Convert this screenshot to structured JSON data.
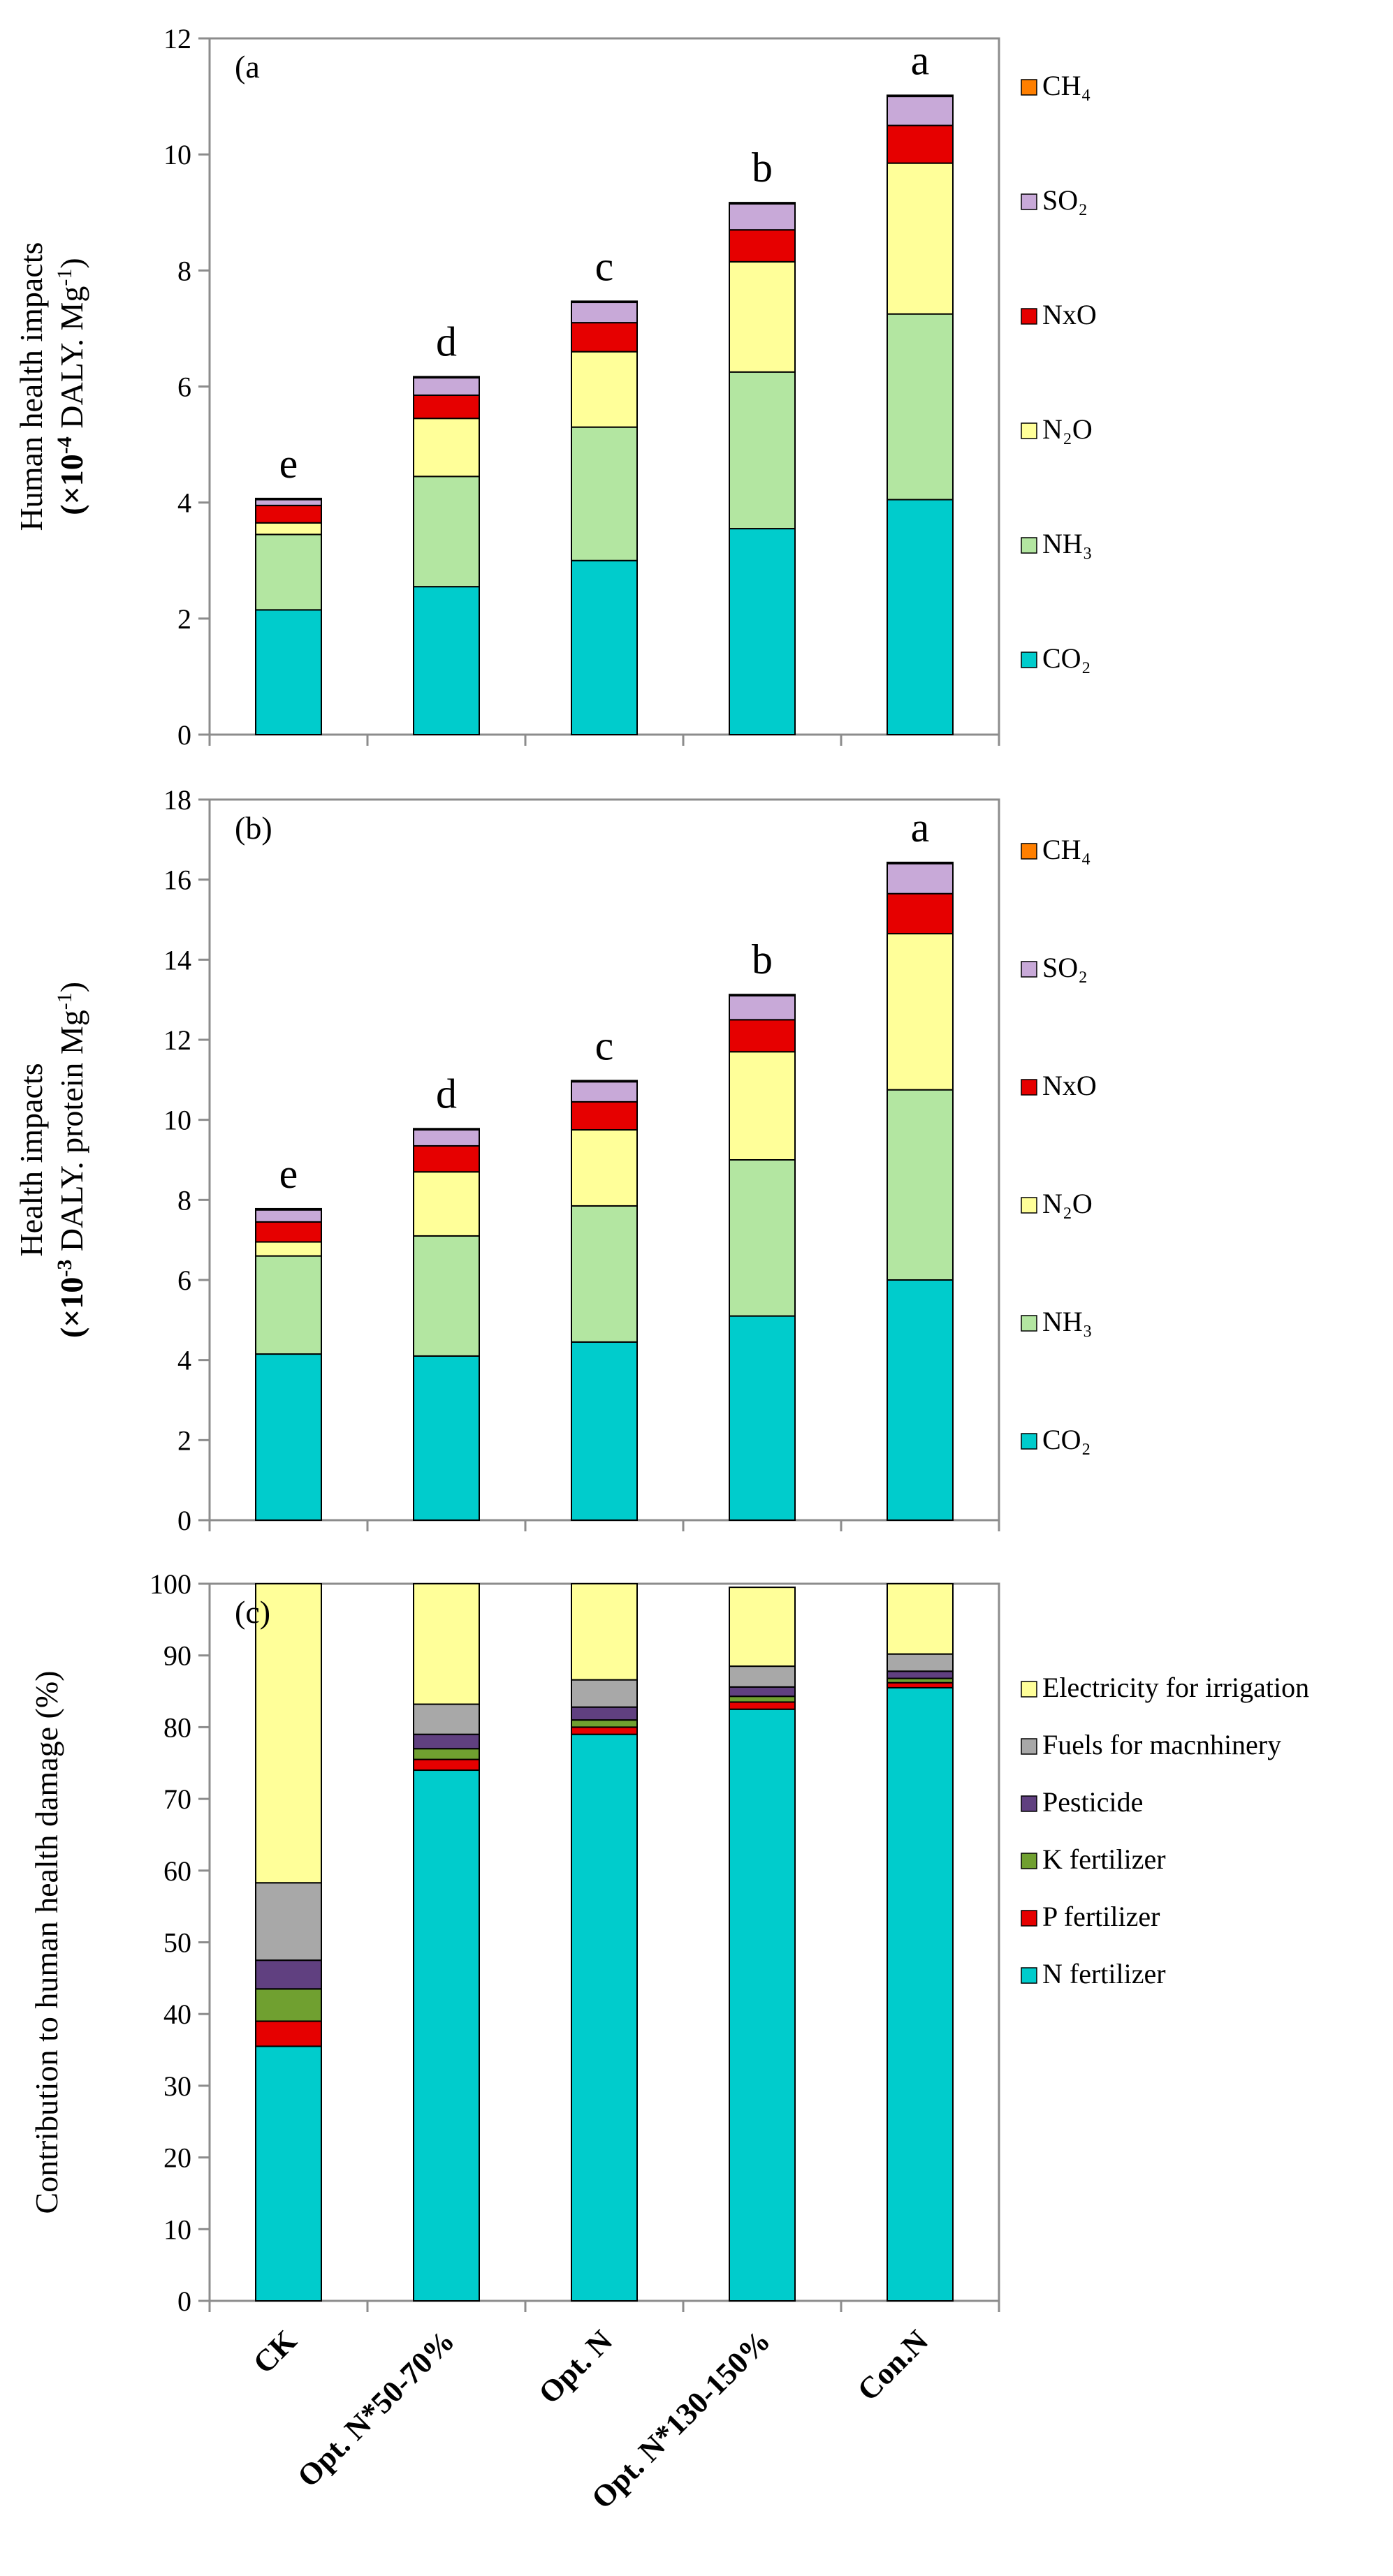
{
  "categories": [
    "CK",
    "Opt. N*50-70%",
    "Opt. N",
    "Opt. N*130-150%",
    "Con.N"
  ],
  "colors": {
    "CO2": "#00CCCC",
    "NH3": "#B3E6A1",
    "N2O": "#FFFF99",
    "NxO": "#E60000",
    "SO2": "#C8A9D8",
    "CH4": "#FF7F00",
    "N fertilizer": "#00CCCC",
    "P fertilizer": "#E60000",
    "K fertilizer": "#70A030",
    "Pesticide": "#604080",
    "Fuels for macnhinery": "#A8A8A8",
    "Electricity for irrigation": "#FFFF99"
  },
  "chart_data": [
    {
      "type": "bar",
      "stacked": true,
      "panel": "(a",
      "ylabel_line1": "Human health impacts",
      "ylabel_line2_prefix": "(×10",
      "ylabel_line2_exp": "-4",
      "ylabel_line2_suffix": "DALY. Mg",
      "ylabel_line2_unit_exp": "-1",
      "ylabel_line2_close": ")",
      "ylim": [
        0,
        12
      ],
      "yticks": [
        0,
        2,
        4,
        6,
        8,
        10,
        12
      ],
      "categories": [
        "CK",
        "Opt. N*50-70%",
        "Opt. N",
        "Opt. N*130-150%",
        "Con.N"
      ],
      "significance": [
        "e",
        "d",
        "c",
        "b",
        "a"
      ],
      "legend_labels": [
        "CH₄",
        "SO₂",
        "NxO",
        "N₂O",
        "NH₃",
        "CO₂"
      ],
      "series": [
        {
          "name": "CO2",
          "values": [
            2.15,
            2.55,
            3.0,
            3.55,
            4.05
          ]
        },
        {
          "name": "NH3",
          "values": [
            1.3,
            1.9,
            2.3,
            2.7,
            3.2
          ]
        },
        {
          "name": "N2O",
          "values": [
            0.2,
            1.0,
            1.3,
            1.9,
            2.6
          ]
        },
        {
          "name": "NxO",
          "values": [
            0.3,
            0.4,
            0.5,
            0.55,
            0.65
          ]
        },
        {
          "name": "SO2",
          "values": [
            0.1,
            0.3,
            0.35,
            0.45,
            0.5
          ]
        },
        {
          "name": "CH4",
          "values": [
            0.02,
            0.02,
            0.02,
            0.02,
            0.02
          ]
        }
      ]
    },
    {
      "type": "bar",
      "stacked": true,
      "panel": "(b)",
      "ylabel_line1": "Health impacts",
      "ylabel_line2_prefix": "(×10",
      "ylabel_line2_exp": "-3",
      "ylabel_line2_suffix": "DALY. protein Mg",
      "ylabel_line2_unit_exp": "-1",
      "ylabel_line2_close": ")",
      "ylim": [
        0,
        18
      ],
      "yticks": [
        0,
        2,
        4,
        6,
        8,
        10,
        12,
        14,
        16,
        18
      ],
      "categories": [
        "CK",
        "Opt. N*50-70%",
        "Opt. N",
        "Opt. N*130-150%",
        "Con.N"
      ],
      "significance": [
        "e",
        "d",
        "c",
        "b",
        "a"
      ],
      "legend_labels": [
        "CH₄",
        "SO₂",
        "NxO",
        "N₂O",
        "NH₃",
        "CO₂"
      ],
      "series": [
        {
          "name": "CO2",
          "values": [
            4.15,
            4.1,
            4.45,
            5.1,
            6.0
          ]
        },
        {
          "name": "NH3",
          "values": [
            2.45,
            3.0,
            3.4,
            3.9,
            4.75
          ]
        },
        {
          "name": "N2O",
          "values": [
            0.35,
            1.6,
            1.9,
            2.7,
            3.9
          ]
        },
        {
          "name": "NxO",
          "values": [
            0.5,
            0.65,
            0.7,
            0.8,
            1.0
          ]
        },
        {
          "name": "SO2",
          "values": [
            0.3,
            0.4,
            0.5,
            0.6,
            0.75
          ]
        },
        {
          "name": "CH4",
          "values": [
            0.03,
            0.03,
            0.03,
            0.03,
            0.03
          ]
        }
      ]
    },
    {
      "type": "bar",
      "stacked": true,
      "panel": "(c)",
      "ylabel_line1": "Contribution to human health damage (%)",
      "ylim": [
        0,
        100
      ],
      "yticks": [
        0,
        10,
        20,
        30,
        40,
        50,
        60,
        70,
        80,
        90,
        100
      ],
      "categories": [
        "CK",
        "Opt. N*50-70%",
        "Opt. N",
        "Opt. N*130-150%",
        "Con.N"
      ],
      "legend_labels": [
        "Electricity for irrigation",
        "Fuels for macnhinery",
        "Pesticide",
        "K fertilizer",
        "P fertilizer",
        "N fertilizer"
      ],
      "series": [
        {
          "name": "N fertilizer",
          "values": [
            35.5,
            74.0,
            79.0,
            82.5,
            85.5
          ]
        },
        {
          "name": "P fertilizer",
          "values": [
            3.5,
            1.5,
            1.0,
            1.0,
            0.7
          ]
        },
        {
          "name": "K fertilizer",
          "values": [
            4.5,
            1.5,
            1.0,
            0.8,
            0.6
          ]
        },
        {
          "name": "Pesticide",
          "values": [
            4.0,
            2.0,
            1.8,
            1.3,
            1.0
          ]
        },
        {
          "name": "Fuels for macnhinery",
          "values": [
            10.8,
            4.2,
            3.8,
            2.9,
            2.4
          ]
        },
        {
          "name": "Electricity for irrigation",
          "values": [
            41.7,
            16.8,
            13.4,
            11.0,
            9.8
          ]
        }
      ]
    }
  ]
}
